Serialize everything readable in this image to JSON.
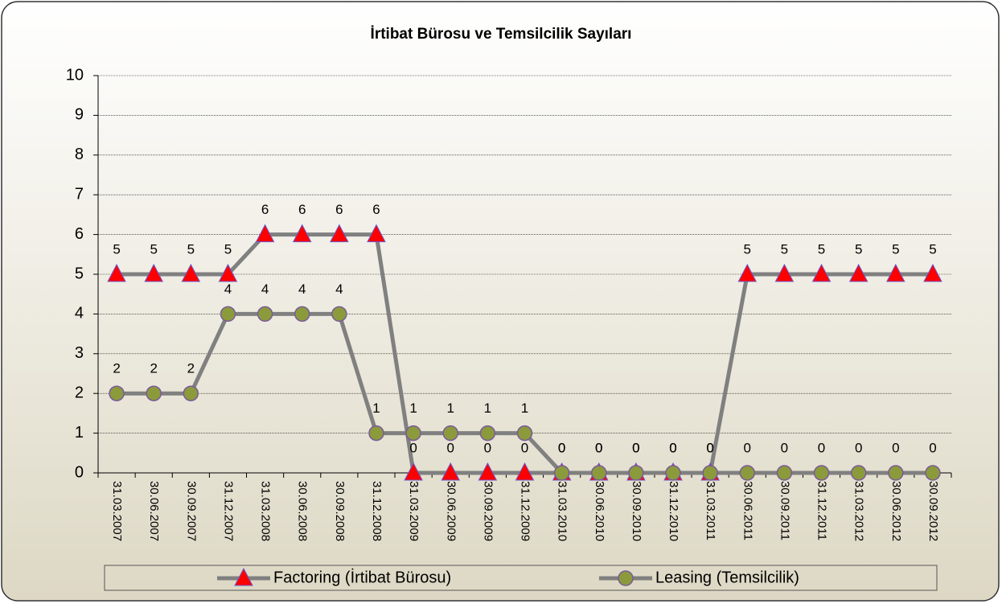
{
  "chart_data": {
    "type": "line",
    "title": "İrtibat Bürosu ve Temsilcilik Sayıları",
    "categories": [
      "31.03.2007",
      "30.06.2007",
      "30.09.2007",
      "31.12.2007",
      "31.03.2008",
      "30.06.2008",
      "30.09.2008",
      "31.12.2008",
      "31.03.2009",
      "30.06.2009",
      "30.09.2009",
      "31.12.2009",
      "31.03.2010",
      "30.06.2010",
      "30.09.2010",
      "31.12.2010",
      "31.03.2011",
      "30.06.2011",
      "30.09.2011",
      "31.12.2011",
      "31.03.2012",
      "30.06.2012",
      "30.09.2012"
    ],
    "series": [
      {
        "name": "Factoring (İrtibat Bürosu)",
        "color": "#808080",
        "marker": "triangle",
        "marker_color": "#ff0000",
        "values": [
          5,
          5,
          5,
          5,
          6,
          6,
          6,
          6,
          0,
          0,
          0,
          0,
          0,
          0,
          0,
          0,
          0,
          5,
          5,
          5,
          5,
          5,
          5
        ]
      },
      {
        "name": "Leasing (Temsilcilik)",
        "color": "#808080",
        "marker": "circle",
        "marker_color": "#8b9a3b",
        "values": [
          2,
          2,
          2,
          4,
          4,
          4,
          4,
          1,
          1,
          1,
          1,
          1,
          0,
          0,
          0,
          0,
          0,
          0,
          0,
          0,
          0,
          0,
          0
        ]
      }
    ],
    "ylim": [
      0,
      10
    ],
    "yticks": [
      0,
      1,
      2,
      3,
      4,
      5,
      6,
      7,
      8,
      9,
      10
    ],
    "grid": true,
    "legend": "bottom"
  }
}
